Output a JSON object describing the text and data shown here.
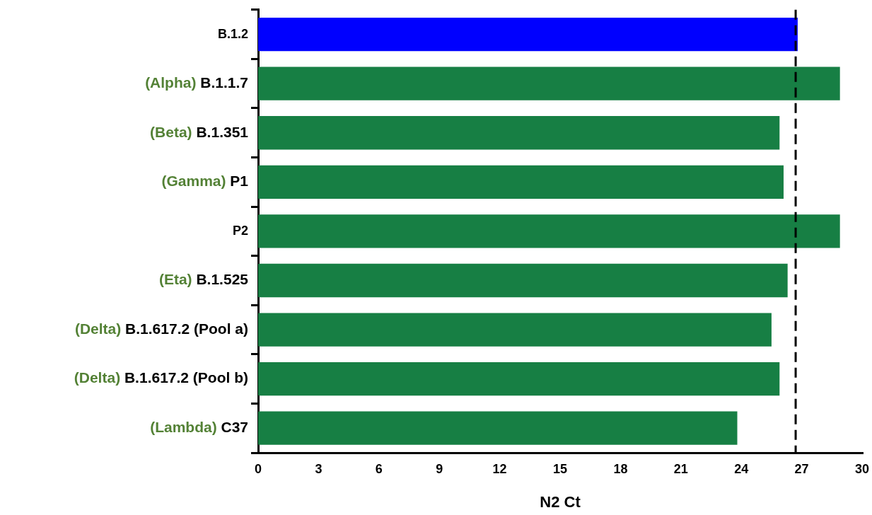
{
  "chart_data": {
    "type": "bar",
    "orientation": "horizontal",
    "xlabel": "N2 Ct",
    "categories": [
      "B.1.2",
      "(Alpha) B.1.1.7",
      "(Beta) B.1.351",
      "(Gamma) P1",
      "P2",
      "(Eta) B.1.525",
      "(Delta) B.1.617.2 (Pool a)",
      "(Delta) B.1.617.2 (Pool b)",
      "(Lambda) C37"
    ],
    "values": [
      26.8,
      28.9,
      25.9,
      26.1,
      28.9,
      26.3,
      25.5,
      25.9,
      23.8
    ],
    "colors": [
      "#0000ff",
      "#177f44",
      "#177f44",
      "#177f44",
      "#177f44",
      "#177f44",
      "#177f44",
      "#177f44",
      "#177f44"
    ],
    "xlim": [
      0,
      30
    ],
    "xticks": [
      0,
      3,
      6,
      9,
      12,
      15,
      18,
      21,
      24,
      27,
      30
    ],
    "grid": false,
    "legend": false,
    "ref_lines": [
      {
        "axis": "x",
        "value": 26.7,
        "line_style": "dashed",
        "color": "#000000"
      }
    ]
  }
}
